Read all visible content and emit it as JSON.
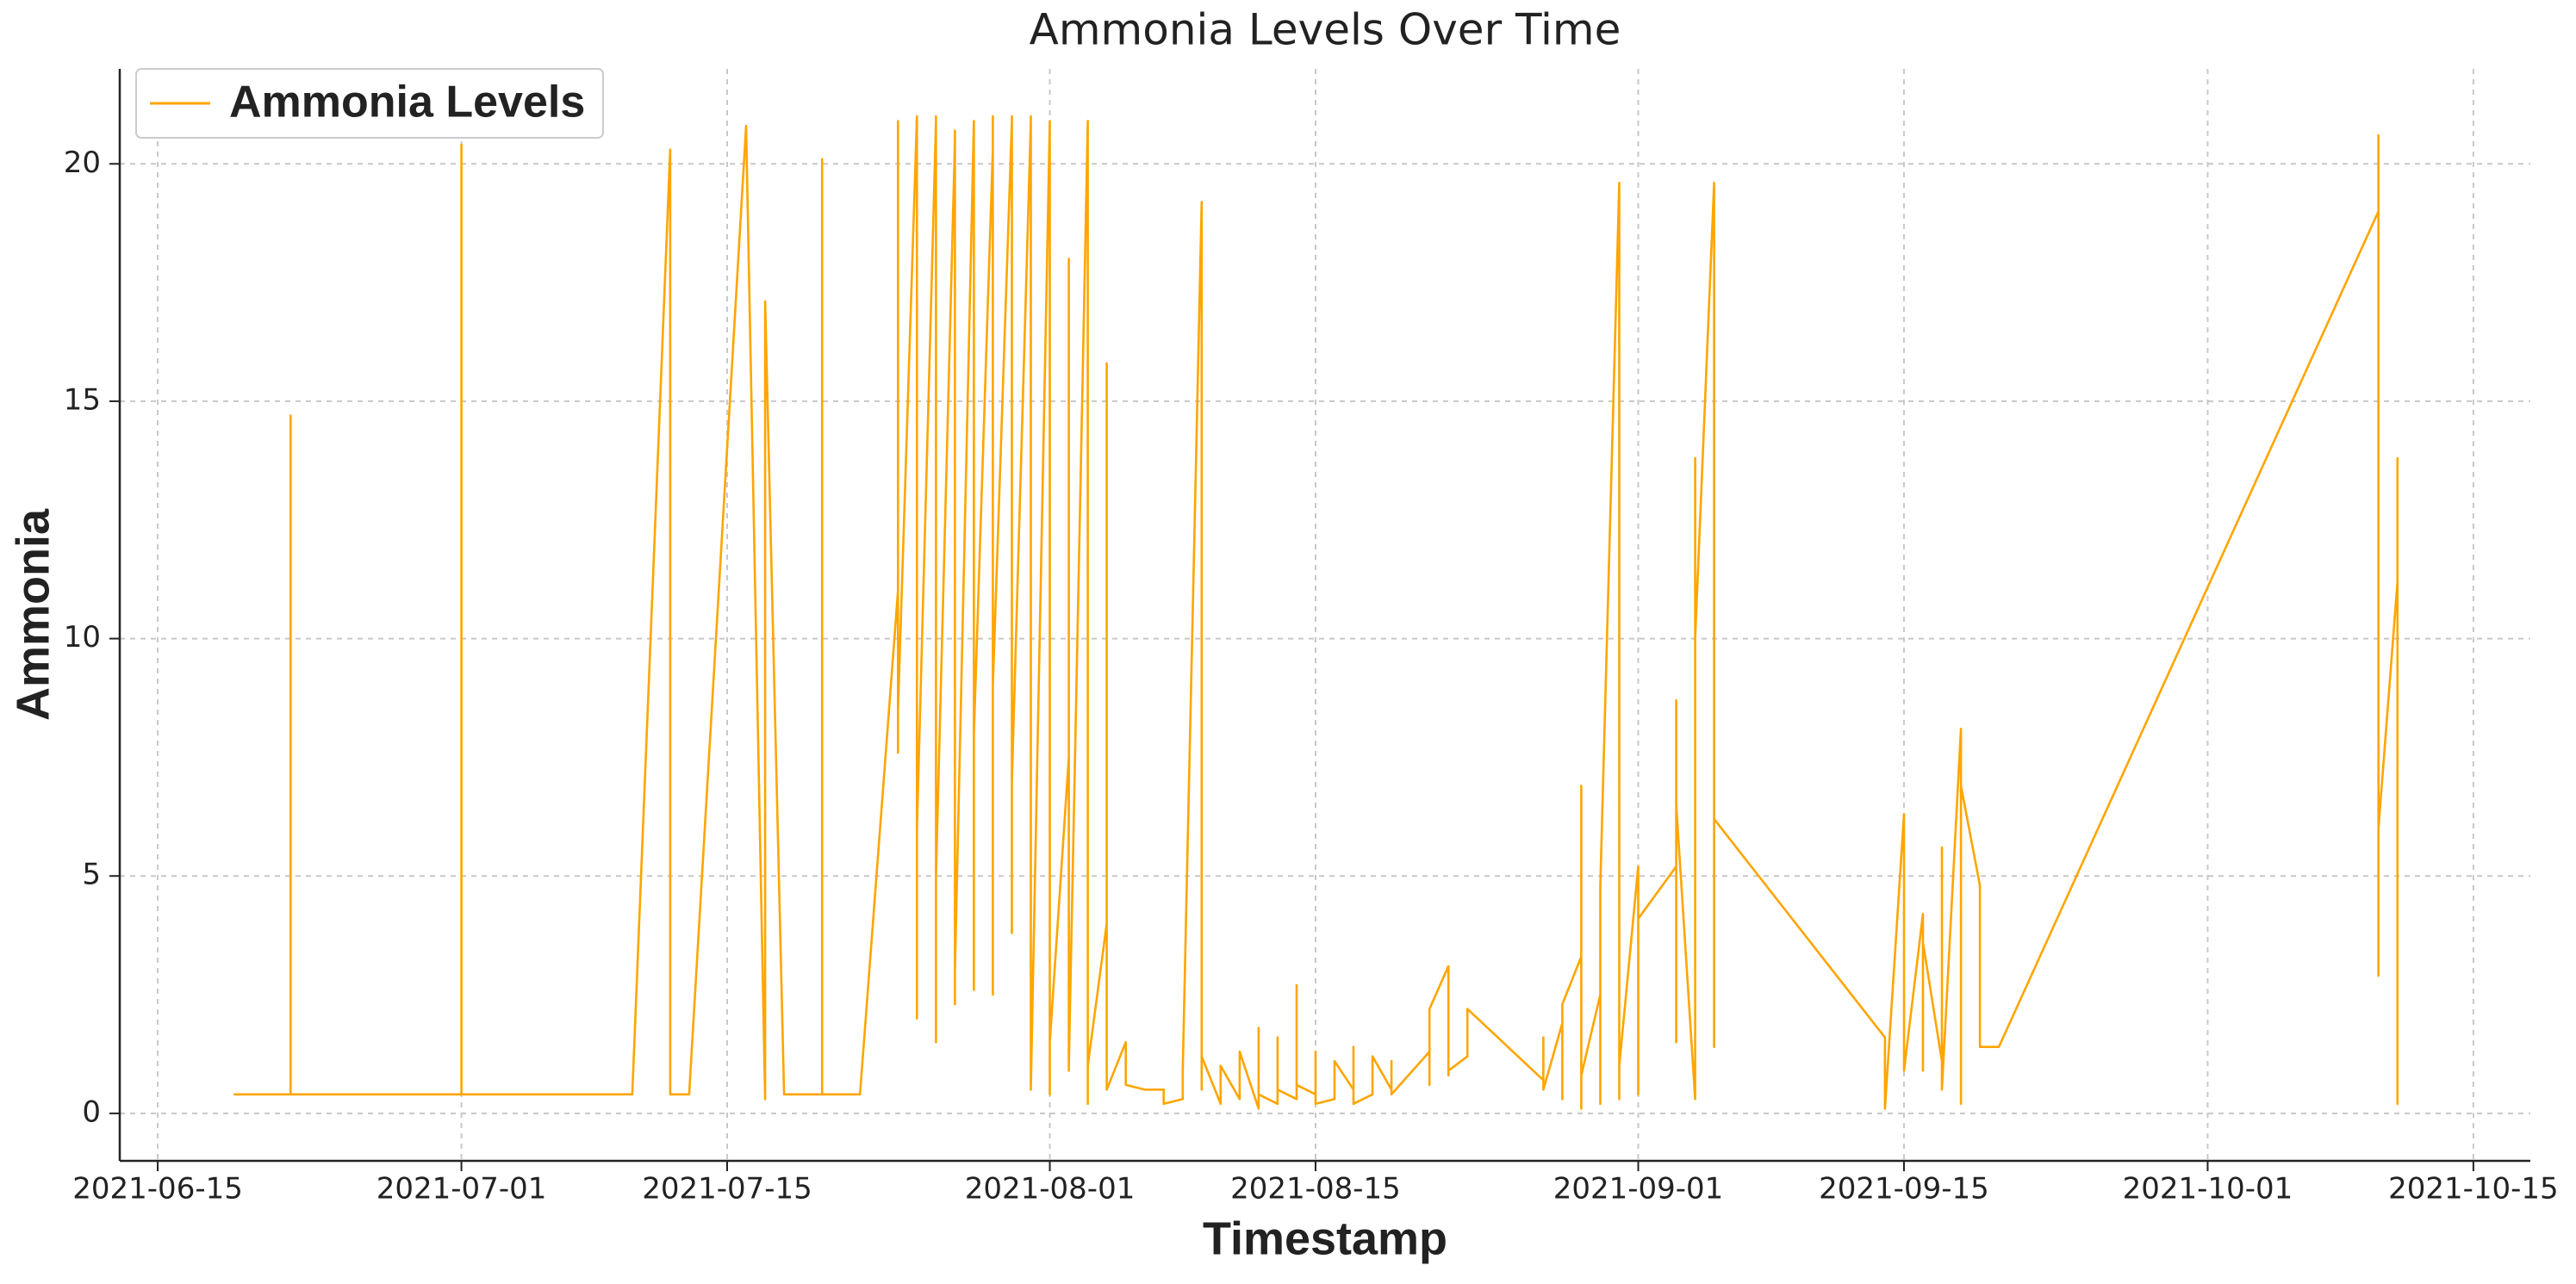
{
  "chart_data": {
    "type": "line",
    "title": "Ammonia Levels Over Time",
    "x_label": "Timestamp",
    "y_label": "Ammonia",
    "x": [
      "2021-06-19",
      "2021-06-22",
      "2021-06-22",
      "2021-06-22",
      "2021-07-01",
      "2021-07-01",
      "2021-07-01",
      "2021-07-10",
      "2021-07-12",
      "2021-07-12",
      "2021-07-13",
      "2021-07-16",
      "2021-07-17",
      "2021-07-17",
      "2021-07-18",
      "2021-07-20",
      "2021-07-20",
      "2021-07-20",
      "2021-07-22",
      "2021-07-24",
      "2021-07-24",
      "2021-07-24",
      "2021-07-24",
      "2021-07-24",
      "2021-07-25",
      "2021-07-25",
      "2021-07-25",
      "2021-07-25",
      "2021-07-25",
      "2021-07-25",
      "2021-07-26",
      "2021-07-26",
      "2021-07-26",
      "2021-07-26",
      "2021-07-26",
      "2021-07-26",
      "2021-07-27",
      "2021-07-27",
      "2021-07-27",
      "2021-07-27",
      "2021-07-27",
      "2021-07-27",
      "2021-07-28",
      "2021-07-28",
      "2021-07-28",
      "2021-07-28",
      "2021-07-28",
      "2021-07-28",
      "2021-07-29",
      "2021-07-29",
      "2021-07-29",
      "2021-07-29",
      "2021-07-29",
      "2021-07-29",
      "2021-07-30",
      "2021-07-30",
      "2021-07-30",
      "2021-07-30",
      "2021-07-30",
      "2021-07-30",
      "2021-07-31",
      "2021-07-31",
      "2021-07-31",
      "2021-07-31",
      "2021-07-31",
      "2021-07-31",
      "2021-07-31",
      "2021-08-01",
      "2021-08-01",
      "2021-08-01",
      "2021-08-01",
      "2021-08-02",
      "2021-08-02",
      "2021-08-02",
      "2021-08-02",
      "2021-08-02",
      "2021-08-02",
      "2021-08-03",
      "2021-08-03",
      "2021-08-03",
      "2021-08-03",
      "2021-08-03",
      "2021-08-03",
      "2021-08-04",
      "2021-08-04",
      "2021-08-04",
      "2021-08-04",
      "2021-08-04",
      "2021-08-04",
      "2021-08-05",
      "2021-08-05",
      "2021-08-06",
      "2021-08-07",
      "2021-08-07",
      "2021-08-08",
      "2021-08-08",
      "2021-08-09",
      "2021-08-09",
      "2021-08-09",
      "2021-08-10",
      "2021-08-10",
      "2021-08-11",
      "2021-08-11",
      "2021-08-12",
      "2021-08-12",
      "2021-08-12",
      "2021-08-13",
      "2021-08-13",
      "2021-08-13",
      "2021-08-14",
      "2021-08-14",
      "2021-08-14",
      "2021-08-15",
      "2021-08-15",
      "2021-08-15",
      "2021-08-16",
      "2021-08-16",
      "2021-08-17",
      "2021-08-17",
      "2021-08-17",
      "2021-08-18",
      "2021-08-18",
      "2021-08-19",
      "2021-08-19",
      "2021-08-19",
      "2021-08-21",
      "2021-08-21",
      "2021-08-21",
      "2021-08-22",
      "2021-08-22",
      "2021-08-22",
      "2021-08-22",
      "2021-08-23",
      "2021-08-23",
      "2021-08-27",
      "2021-08-27",
      "2021-08-27",
      "2021-08-28",
      "2021-08-28",
      "2021-08-28",
      "2021-08-29",
      "2021-08-29",
      "2021-08-29",
      "2021-08-29",
      "2021-08-30",
      "2021-08-30",
      "2021-08-30",
      "2021-08-31",
      "2021-08-31",
      "2021-08-31",
      "2021-08-31",
      "2021-09-01",
      "2021-09-01",
      "2021-09-01",
      "2021-09-03",
      "2021-09-03",
      "2021-09-03",
      "2021-09-03",
      "2021-09-04",
      "2021-09-04",
      "2021-09-04",
      "2021-09-04",
      "2021-09-05",
      "2021-09-05",
      "2021-09-05",
      "2021-09-05",
      "2021-09-14",
      "2021-09-14",
      "2021-09-15",
      "2021-09-15",
      "2021-09-15",
      "2021-09-15",
      "2021-09-16",
      "2021-09-16",
      "2021-09-16",
      "2021-09-17",
      "2021-09-17",
      "2021-09-17",
      "2021-09-18",
      "2021-09-18",
      "2021-09-18",
      "2021-09-19",
      "2021-09-19",
      "2021-09-20",
      "2021-10-10",
      "2021-10-10",
      "2021-10-10",
      "2021-10-10",
      "2021-10-10",
      "2021-10-10",
      "2021-10-10",
      "2021-10-11",
      "2021-10-11",
      "2021-10-11",
      "2021-10-11",
      "2021-10-11",
      "2021-10-11",
      "2021-10-11"
    ],
    "series": [
      {
        "name": "Ammonia Levels",
        "color": "#ffa500",
        "values": [
          0.4,
          0.4,
          14.7,
          0.4,
          0.4,
          20.4,
          0.4,
          0.4,
          20.3,
          0.4,
          0.4,
          20.8,
          0.3,
          17.1,
          0.4,
          0.4,
          20.1,
          0.4,
          0.4,
          11,
          20.9,
          7.6,
          20.9,
          8.5,
          21,
          12,
          20.8,
          2,
          19,
          6,
          20.9,
          3,
          21,
          1.5,
          18,
          5,
          20.5,
          2.3,
          19,
          4,
          20.7,
          3,
          20.9,
          6,
          19.5,
          2.6,
          20.8,
          8,
          20.3,
          3.5,
          21,
          2.5,
          20,
          9,
          20.9,
          4,
          18,
          3.8,
          21,
          7,
          20.9,
          3.7,
          17,
          5,
          21,
          12,
          0.5,
          20.9,
          0.4,
          8,
          1.5,
          7.5,
          0.9,
          18,
          2,
          8,
          1,
          20.9,
          0.2,
          6,
          1.2,
          20.1,
          1,
          4,
          0.7,
          3.5,
          0.5,
          15.8,
          0.5,
          1.5,
          0.6,
          0.5,
          0.5,
          0.2,
          0.3,
          0.9,
          19.2,
          0.5,
          1.2,
          0.2,
          1.0,
          0.3,
          1.3,
          0.1,
          1.8,
          0.4,
          0.2,
          1.6,
          0.5,
          0.3,
          2.7,
          0.6,
          0.4,
          1.3,
          0.2,
          0.3,
          1.1,
          0.5,
          1.4,
          0.2,
          0.4,
          1.2,
          0.5,
          1.1,
          0.4,
          1.3,
          0.6,
          2.2,
          3.1,
          0.8,
          1.6,
          0.9,
          1.2,
          2.2,
          0.7,
          1.6,
          0.5,
          1.9,
          0.3,
          2.3,
          3.3,
          0.1,
          6.9,
          0.8,
          2.5,
          0.2,
          4.8,
          19.6,
          0.3,
          12.6,
          1,
          5.2,
          0.4,
          4.1,
          5.2,
          8.7,
          1.5,
          6.5,
          0.3,
          13.8,
          2,
          10,
          19.6,
          1.4,
          10.5,
          6.2,
          1.6,
          0.1,
          6.3,
          1.2,
          2.7,
          0.9,
          4.2,
          0.9,
          3.6,
          1.1,
          5.6,
          0.5,
          8.1,
          0.2,
          6.9,
          4.8,
          1.4,
          1.4,
          19,
          20.6,
          2.9,
          20.5,
          4.5,
          16,
          6,
          11.2,
          1.6,
          13.8,
          0.2,
          11.2,
          4.2,
          10.6
        ]
      }
    ],
    "xlim": [
      "2021-06-13",
      "2021-10-18"
    ],
    "xticks": [
      "2021-06-15",
      "2021-07-01",
      "2021-07-15",
      "2021-08-01",
      "2021-08-15",
      "2021-09-01",
      "2021-09-15",
      "2021-10-01",
      "2021-10-15"
    ],
    "ylim": [
      -1,
      22
    ],
    "yticks": [
      0,
      5,
      10,
      15,
      20
    ],
    "grid": true,
    "legend": "upper left"
  }
}
